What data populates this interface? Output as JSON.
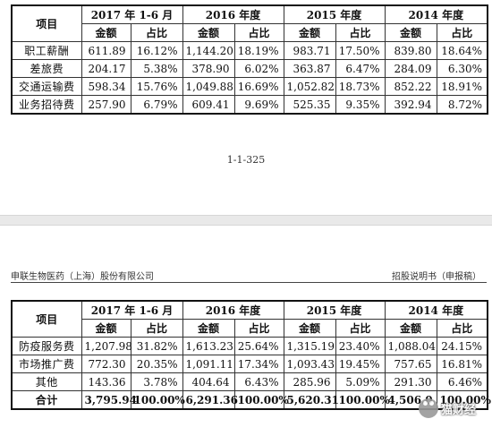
{
  "doc": {
    "page_number": "1-1-325",
    "header_left": "申联生物医药（上海）股份有限公司",
    "header_right": "招股说明书（申报稿）",
    "watermark": "猫财经"
  },
  "table_top": {
    "item_header": "项目",
    "periods": [
      "2017 年 1-6 月",
      "2016 年度",
      "2015 年度",
      "2014 年度"
    ],
    "sub_headers": [
      "金额",
      "占比"
    ],
    "rows": [
      {
        "label": "职工薪酬",
        "cells": [
          "611.89",
          "16.12%",
          "1,144.20",
          "18.19%",
          "983.71",
          "17.50%",
          "839.80",
          "18.64%"
        ]
      },
      {
        "label": "差旅费",
        "cells": [
          "204.17",
          "5.38%",
          "378.90",
          "6.02%",
          "363.87",
          "6.47%",
          "284.09",
          "6.30%"
        ]
      },
      {
        "label": "交通运输费",
        "cells": [
          "598.34",
          "15.76%",
          "1,049.88",
          "16.69%",
          "1,052.82",
          "18.73%",
          "852.22",
          "18.91%"
        ]
      },
      {
        "label": "业务招待费",
        "cells": [
          "257.90",
          "6.79%",
          "609.41",
          "9.69%",
          "525.35",
          "9.35%",
          "392.94",
          "8.72%"
        ]
      }
    ]
  },
  "table_bottom": {
    "item_header": "项目",
    "periods": [
      "2017 年 1-6 月",
      "2016 年度",
      "2015 年度",
      "2014 年度"
    ],
    "sub_headers": [
      "金额",
      "占比"
    ],
    "rows": [
      {
        "label": "防疫服务费",
        "cells": [
          "1,207.98",
          "31.82%",
          "1,613.23",
          "25.64%",
          "1,315.19",
          "23.40%",
          "1,088.04",
          "24.15%"
        ]
      },
      {
        "label": "市场推广费",
        "cells": [
          "772.30",
          "20.35%",
          "1,091.11",
          "17.34%",
          "1,093.43",
          "19.45%",
          "757.65",
          "16.81%"
        ]
      },
      {
        "label": "其他",
        "cells": [
          "143.36",
          "3.78%",
          "404.64",
          "6.43%",
          "285.96",
          "5.09%",
          "291.30",
          "6.46%"
        ]
      }
    ],
    "total": {
      "label": "合计",
      "cells": [
        "3,795.94",
        "100.00%",
        "6,291.36",
        "100.00%",
        "5,620.31",
        "100.00%",
        "4,506.0",
        "100.00%"
      ]
    }
  }
}
